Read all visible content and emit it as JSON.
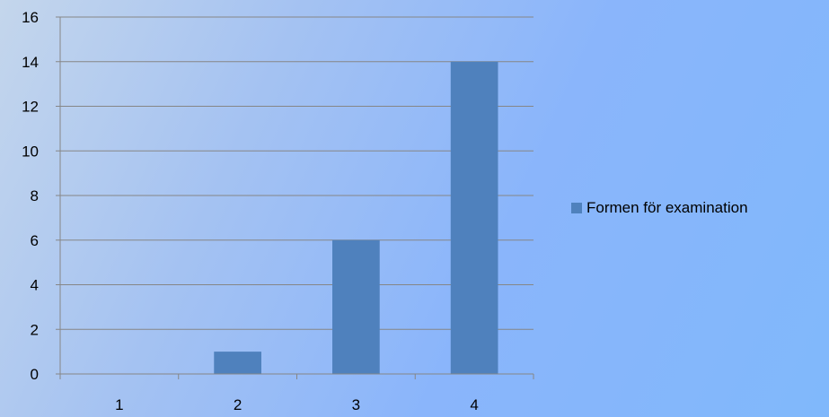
{
  "chart_data": {
    "type": "bar",
    "categories": [
      "1",
      "2",
      "3",
      "4"
    ],
    "series": [
      {
        "name": "Formen för examination",
        "values": [
          0,
          1,
          6,
          14
        ]
      }
    ],
    "ylim": [
      0,
      16
    ],
    "yticks": [
      0,
      2,
      4,
      6,
      8,
      10,
      12,
      14,
      16
    ],
    "grid": true,
    "legend_position": "right",
    "colors": {
      "bar": "#4f81bd",
      "grid": "#868686",
      "axis": "#868686"
    }
  }
}
